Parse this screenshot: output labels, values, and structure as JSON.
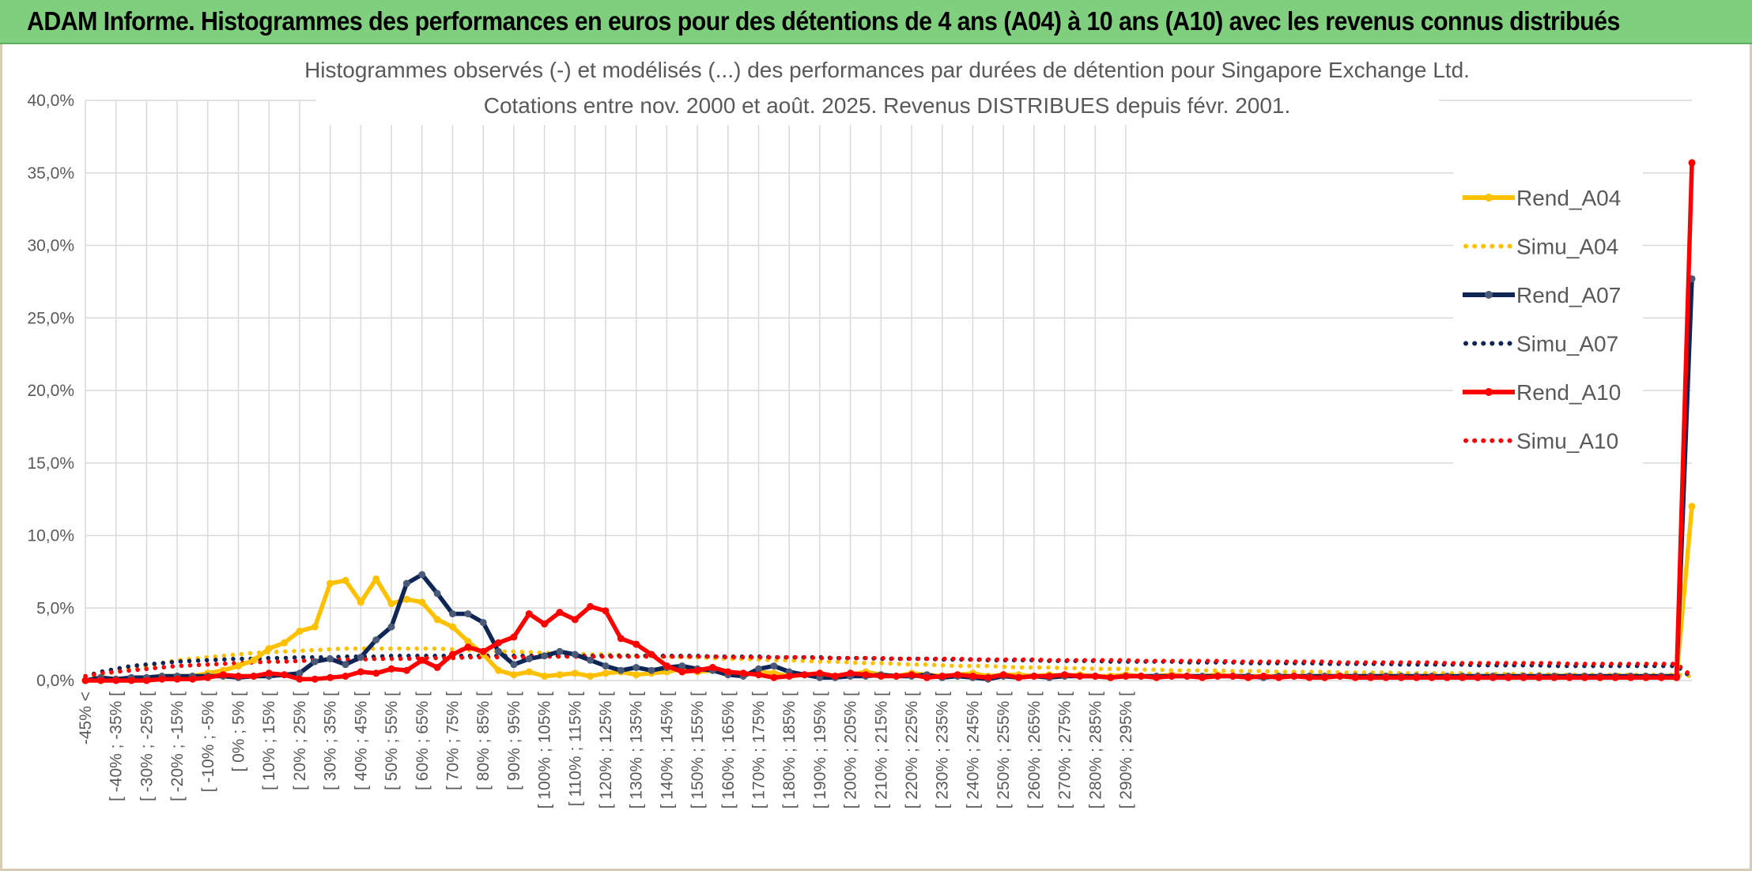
{
  "header": {
    "title": "ADAM Informe. Histogrammes des performances en euros pour des détentions de 4 ans (A04) à 10 ans (A10) avec les revenus connus distribués"
  },
  "chart_data": {
    "type": "line",
    "title_line1": "Histogrammes observés (-) et modélisés (...) des performances par durées de détention pour Singapore Exchange Ltd.",
    "title_line2": "Cotations entre nov. 2000 et août. 2025. Revenus DISTRIBUES depuis févr. 2001.",
    "ylim": [
      0,
      40
    ],
    "yticks": [
      "0,0%",
      "5,0%",
      "10,0%",
      "15,0%",
      "20,0%",
      "25,0%",
      "30,0%",
      "35,0%",
      "40,0%"
    ],
    "grid": true,
    "legend_position": "right",
    "x_tick_labels": [
      "-45% <",
      "[ -40% ; -35% [",
      "[ -30% ; -25% [",
      "[ -20% ; -15% [",
      "[ -10% ; -5% [",
      "[ 0% ; 5% [",
      "[ 10% ; 15% [",
      "[ 20% ; 25% [",
      "[ 30% ; 35% [",
      "[ 40% ; 45% [",
      "[ 50% ; 55% [",
      "[ 60% ; 65% [",
      "[ 70% ; 75% [",
      "[ 80% ; 85% [",
      "[ 90% ; 95% [",
      "[ 100% ; 105% [",
      "[ 110% ; 115% [",
      "[ 120% ; 125% [",
      "[ 130% ; 135% [",
      "[ 140% ; 145% [",
      "[ 150% ; 155% [",
      "[ 160% ; 165% [",
      "[ 170% ; 175% [",
      "[ 180% ; 185% [",
      "[ 190% ; 195% [",
      "[ 200% ; 205% [",
      "[ 210% ; 215% [",
      "[ 220% ; 225% [",
      "[ 230% ; 235% [",
      "[ 240% ; 245% [",
      "[ 250% ; 255% [",
      "[ 260% ; 265% [",
      "[ 270% ; 275% [",
      "[ 280% ; 285% [",
      "[ 290% ; 295% ["
    ],
    "series": [
      {
        "name": "Rend_A04",
        "style": "solid",
        "color": "#ffc000",
        "values": [
          0.0,
          0.1,
          0.1,
          0.1,
          0.2,
          0.3,
          0.3,
          0.3,
          0.5,
          0.7,
          1.0,
          1.4,
          2.2,
          2.6,
          3.4,
          3.7,
          6.7,
          6.9,
          5.4,
          7.0,
          5.3,
          5.6,
          5.4,
          4.2,
          3.7,
          2.7,
          1.8,
          0.7,
          0.4,
          0.6,
          0.3,
          0.4,
          0.5,
          0.3,
          0.5,
          0.6,
          0.4,
          0.5,
          0.6,
          0.8,
          0.6,
          0.7,
          0.5,
          0.4,
          0.6,
          0.5,
          0.3,
          0.4,
          0.5,
          0.3,
          0.4,
          0.6,
          0.4,
          0.3,
          0.5,
          0.4,
          0.3,
          0.4,
          0.5,
          0.3,
          0.4,
          0.4,
          0.3,
          0.4,
          0.3,
          0.4,
          0.3,
          0.3,
          0.4,
          0.3,
          0.3,
          0.4,
          0.3,
          0.3,
          0.4,
          0.3,
          0.3,
          0.3,
          0.3,
          0.3,
          0.3,
          0.3,
          0.3,
          0.3,
          0.3,
          0.3,
          0.3,
          0.3,
          0.3,
          0.3,
          0.3,
          0.3,
          0.3,
          0.3,
          0.3,
          0.3,
          0.3,
          0.3,
          0.3,
          0.3,
          0.3,
          0.3,
          0.3,
          0.3,
          0.3,
          12.0
        ]
      },
      {
        "name": "Simu_A04",
        "style": "dotted",
        "color": "#ffc000",
        "values": [
          0.2,
          0.4,
          0.6,
          0.8,
          1.0,
          1.2,
          1.4,
          1.5,
          1.6,
          1.7,
          1.8,
          1.9,
          1.95,
          2.0,
          2.05,
          2.1,
          2.15,
          2.2,
          2.2,
          2.2,
          2.2,
          2.2,
          2.2,
          2.2,
          2.15,
          2.1,
          2.05,
          2.0,
          2.0,
          1.95,
          1.9,
          1.9,
          1.85,
          1.8,
          1.8,
          1.75,
          1.7,
          1.7,
          1.65,
          1.6,
          1.6,
          1.55,
          1.5,
          1.5,
          1.45,
          1.4,
          1.4,
          1.35,
          1.3,
          1.3,
          1.25,
          1.2,
          1.2,
          1.15,
          1.1,
          1.1,
          1.05,
          1.0,
          1.0,
          1.0,
          0.95,
          0.9,
          0.9,
          0.9,
          0.85,
          0.85,
          0.8,
          0.8,
          0.8,
          0.75,
          0.75,
          0.7,
          0.7,
          0.7,
          0.7,
          0.65,
          0.65,
          0.65,
          0.6,
          0.6,
          0.6,
          0.6,
          0.55,
          0.55,
          0.55,
          0.55,
          0.5,
          0.5,
          0.5,
          0.5,
          0.5,
          0.45,
          0.45,
          0.45,
          0.45,
          0.45,
          0.4,
          0.4,
          0.4,
          0.4,
          0.4,
          0.4,
          0.4,
          0.4,
          0.4,
          0.3
        ]
      },
      {
        "name": "Rend_A07",
        "style": "solid",
        "color": "#0f2556",
        "values": [
          0.0,
          0.2,
          0.1,
          0.2,
          0.2,
          0.3,
          0.3,
          0.3,
          0.3,
          0.3,
          0.2,
          0.3,
          0.3,
          0.4,
          0.5,
          1.3,
          1.5,
          1.1,
          1.6,
          2.8,
          3.7,
          6.7,
          7.3,
          6.0,
          4.6,
          4.6,
          4.0,
          2.0,
          1.1,
          1.5,
          1.7,
          2.0,
          1.8,
          1.4,
          1.0,
          0.7,
          0.9,
          0.7,
          0.9,
          1.0,
          0.8,
          0.7,
          0.4,
          0.3,
          0.8,
          1.0,
          0.6,
          0.4,
          0.2,
          0.2,
          0.3,
          0.3,
          0.4,
          0.3,
          0.3,
          0.4,
          0.2,
          0.3,
          0.2,
          0.1,
          0.3,
          0.2,
          0.3,
          0.2,
          0.3,
          0.3,
          0.3,
          0.2,
          0.3,
          0.3,
          0.3,
          0.3,
          0.3,
          0.3,
          0.3,
          0.3,
          0.3,
          0.2,
          0.3,
          0.3,
          0.3,
          0.3,
          0.3,
          0.3,
          0.3,
          0.3,
          0.3,
          0.3,
          0.3,
          0.3,
          0.3,
          0.3,
          0.3,
          0.3,
          0.3,
          0.3,
          0.3,
          0.3,
          0.3,
          0.3,
          0.3,
          0.3,
          0.3,
          0.3,
          0.3,
          27.7
        ]
      },
      {
        "name": "Simu_A07",
        "style": "dotted",
        "color": "#0f2556",
        "values": [
          0.3,
          0.6,
          0.8,
          1.0,
          1.1,
          1.2,
          1.3,
          1.35,
          1.4,
          1.45,
          1.5,
          1.5,
          1.55,
          1.55,
          1.6,
          1.6,
          1.6,
          1.65,
          1.65,
          1.65,
          1.7,
          1.7,
          1.7,
          1.7,
          1.7,
          1.7,
          1.7,
          1.7,
          1.7,
          1.7,
          1.7,
          1.7,
          1.7,
          1.7,
          1.7,
          1.7,
          1.7,
          1.7,
          1.7,
          1.7,
          1.7,
          1.65,
          1.65,
          1.65,
          1.65,
          1.6,
          1.6,
          1.6,
          1.6,
          1.55,
          1.55,
          1.55,
          1.5,
          1.5,
          1.5,
          1.5,
          1.45,
          1.45,
          1.45,
          1.4,
          1.4,
          1.4,
          1.4,
          1.35,
          1.35,
          1.35,
          1.35,
          1.3,
          1.3,
          1.3,
          1.3,
          1.3,
          1.25,
          1.25,
          1.25,
          1.25,
          1.2,
          1.2,
          1.2,
          1.2,
          1.2,
          1.15,
          1.15,
          1.15,
          1.15,
          1.15,
          1.1,
          1.1,
          1.1,
          1.1,
          1.1,
          1.05,
          1.05,
          1.05,
          1.05,
          1.05,
          1.0,
          1.0,
          1.0,
          1.0,
          1.0,
          1.0,
          1.0,
          1.0,
          1.0,
          0.2
        ]
      },
      {
        "name": "Rend_A10",
        "style": "solid",
        "color": "#ff0000",
        "values": [
          0.0,
          0.0,
          0.0,
          0.0,
          0.0,
          0.1,
          0.1,
          0.1,
          0.2,
          0.4,
          0.3,
          0.3,
          0.5,
          0.4,
          0.1,
          0.1,
          0.2,
          0.3,
          0.6,
          0.5,
          0.8,
          0.7,
          1.4,
          0.9,
          1.8,
          2.3,
          2.0,
          2.6,
          3.0,
          4.6,
          3.9,
          4.7,
          4.2,
          5.1,
          4.8,
          2.9,
          2.5,
          1.8,
          1.0,
          0.6,
          0.7,
          0.9,
          0.6,
          0.5,
          0.4,
          0.2,
          0.3,
          0.4,
          0.5,
          0.3,
          0.5,
          0.4,
          0.3,
          0.3,
          0.4,
          0.2,
          0.3,
          0.4,
          0.3,
          0.2,
          0.4,
          0.2,
          0.3,
          0.3,
          0.4,
          0.3,
          0.3,
          0.2,
          0.3,
          0.3,
          0.2,
          0.3,
          0.3,
          0.2,
          0.3,
          0.3,
          0.2,
          0.3,
          0.2,
          0.3,
          0.2,
          0.2,
          0.3,
          0.2,
          0.2,
          0.2,
          0.2,
          0.2,
          0.2,
          0.2,
          0.2,
          0.2,
          0.2,
          0.2,
          0.2,
          0.2,
          0.2,
          0.2,
          0.2,
          0.2,
          0.2,
          0.2,
          0.2,
          0.2,
          0.2,
          35.7
        ]
      },
      {
        "name": "Simu_A10",
        "style": "dotted",
        "color": "#ff0000",
        "values": [
          0.3,
          0.5,
          0.6,
          0.7,
          0.8,
          0.9,
          1.0,
          1.05,
          1.1,
          1.15,
          1.2,
          1.25,
          1.3,
          1.3,
          1.35,
          1.4,
          1.4,
          1.45,
          1.45,
          1.5,
          1.5,
          1.5,
          1.55,
          1.55,
          1.55,
          1.6,
          1.6,
          1.6,
          1.6,
          1.6,
          1.65,
          1.65,
          1.65,
          1.65,
          1.65,
          1.65,
          1.65,
          1.65,
          1.65,
          1.65,
          1.65,
          1.65,
          1.6,
          1.6,
          1.6,
          1.6,
          1.6,
          1.6,
          1.55,
          1.55,
          1.55,
          1.55,
          1.55,
          1.5,
          1.5,
          1.5,
          1.5,
          1.5,
          1.45,
          1.45,
          1.45,
          1.45,
          1.45,
          1.4,
          1.4,
          1.4,
          1.4,
          1.4,
          1.4,
          1.35,
          1.35,
          1.35,
          1.35,
          1.35,
          1.35,
          1.3,
          1.3,
          1.3,
          1.3,
          1.3,
          1.3,
          1.3,
          1.25,
          1.25,
          1.25,
          1.25,
          1.25,
          1.25,
          1.25,
          1.2,
          1.2,
          1.2,
          1.2,
          1.2,
          1.2,
          1.2,
          1.2,
          1.15,
          1.15,
          1.15,
          1.15,
          1.15,
          1.15,
          1.15,
          1.15,
          0.3
        ]
      }
    ]
  }
}
